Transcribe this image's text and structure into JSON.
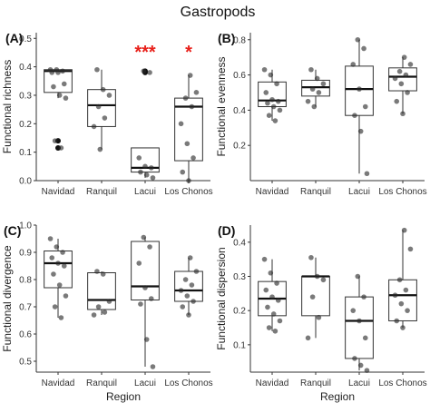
{
  "figure": {
    "title": "Gastropods"
  },
  "chart_data": [
    {
      "type": "box",
      "panel": "(A)",
      "ylabel": "Functional richness",
      "xlabel": "",
      "categories": [
        "Navidad",
        "Ranquil",
        "Lacui",
        "Los Chonos"
      ],
      "ylim": [
        0,
        0.52
      ],
      "yticks": [
        0.0,
        0.1,
        0.2,
        0.3,
        0.4,
        0.5
      ],
      "grid": false,
      "boxes": [
        {
          "q1": 0.31,
          "median": 0.385,
          "q3": 0.39,
          "whisker_low": 0.29,
          "whisker_high": 0.39,
          "outliers": [
            0.14,
            0.115
          ]
        },
        {
          "q1": 0.19,
          "median": 0.265,
          "q3": 0.32,
          "whisker_low": 0.11,
          "whisker_high": 0.39,
          "outliers": []
        },
        {
          "q1": 0.03,
          "median": 0.045,
          "q3": 0.115,
          "whisker_low": 0.01,
          "whisker_high": 0.115,
          "outliers": [
            0.385,
            0.38
          ]
        },
        {
          "q1": 0.07,
          "median": 0.26,
          "q3": 0.29,
          "whisker_low": 0.0,
          "whisker_high": 0.37,
          "outliers": []
        }
      ],
      "points": [
        [
          0.39,
          0.39,
          0.385,
          0.38,
          0.38,
          0.34,
          0.33,
          0.3,
          0.29,
          0.14,
          0.115
        ],
        [
          0.39,
          0.32,
          0.3,
          0.26,
          0.22,
          0.19,
          0.11
        ],
        [
          0.385,
          0.38,
          0.08,
          0.05,
          0.045,
          0.03,
          0.02,
          0.01
        ],
        [
          0.37,
          0.31,
          0.29,
          0.26,
          0.2,
          0.13,
          0.08,
          0.03,
          0.0
        ]
      ],
      "annotations": [
        "***",
        "*"
      ]
    },
    {
      "type": "box",
      "panel": "(B)",
      "ylabel": "Functional evenness",
      "xlabel": "",
      "categories": [
        "Navidad",
        "Ranquil",
        "Lacui",
        "Los Chonos"
      ],
      "ylim": [
        0,
        0.84
      ],
      "yticks": [
        0.2,
        0.4,
        0.6,
        0.8
      ],
      "grid": false,
      "boxes": [
        {
          "q1": 0.42,
          "median": 0.455,
          "q3": 0.56,
          "whisker_low": 0.34,
          "whisker_high": 0.63,
          "outliers": []
        },
        {
          "q1": 0.48,
          "median": 0.53,
          "q3": 0.57,
          "whisker_low": 0.42,
          "whisker_high": 0.63,
          "outliers": []
        },
        {
          "q1": 0.37,
          "median": 0.52,
          "q3": 0.65,
          "whisker_low": 0.04,
          "whisker_high": 0.8,
          "outliers": []
        },
        {
          "q1": 0.51,
          "median": 0.59,
          "q3": 0.64,
          "whisker_low": 0.38,
          "whisker_high": 0.7,
          "outliers": []
        }
      ],
      "points": [
        [
          0.63,
          0.6,
          0.55,
          0.5,
          0.46,
          0.45,
          0.44,
          0.42,
          0.4,
          0.37,
          0.34
        ],
        [
          0.63,
          0.58,
          0.55,
          0.52,
          0.5,
          0.45,
          0.42
        ],
        [
          0.8,
          0.75,
          0.66,
          0.52,
          0.42,
          0.37,
          0.28,
          0.04
        ],
        [
          0.7,
          0.66,
          0.62,
          0.6,
          0.58,
          0.55,
          0.5,
          0.45,
          0.38
        ]
      ],
      "annotations": []
    },
    {
      "type": "box",
      "panel": "(C)",
      "ylabel": "Functional divergence",
      "xlabel": "Region",
      "categories": [
        "Navidad",
        "Ranquil",
        "Lacui",
        "Los Chonos"
      ],
      "ylim": [
        0.46,
        1.0
      ],
      "yticks": [
        0.5,
        0.6,
        0.7,
        0.8,
        0.9,
        1.0
      ],
      "grid": false,
      "boxes": [
        {
          "q1": 0.77,
          "median": 0.86,
          "q3": 0.905,
          "whisker_low": 0.66,
          "whisker_high": 0.95,
          "outliers": []
        },
        {
          "q1": 0.69,
          "median": 0.725,
          "q3": 0.825,
          "whisker_low": 0.67,
          "whisker_high": 0.83,
          "outliers": []
        },
        {
          "q1": 0.725,
          "median": 0.775,
          "q3": 0.94,
          "whisker_low": 0.48,
          "whisker_high": 0.955,
          "outliers": []
        },
        {
          "q1": 0.72,
          "median": 0.76,
          "q3": 0.83,
          "whisker_low": 0.67,
          "whisker_high": 0.88,
          "outliers": []
        }
      ],
      "points": [
        [
          0.95,
          0.92,
          0.9,
          0.88,
          0.86,
          0.85,
          0.82,
          0.78,
          0.74,
          0.7,
          0.66
        ],
        [
          0.83,
          0.82,
          0.72,
          0.7,
          0.68,
          0.67
        ],
        [
          0.955,
          0.92,
          0.86,
          0.77,
          0.73,
          0.71,
          0.58,
          0.48
        ],
        [
          0.88,
          0.83,
          0.8,
          0.78,
          0.76,
          0.74,
          0.72,
          0.7,
          0.67
        ]
      ],
      "annotations": []
    },
    {
      "type": "box",
      "panel": "(D)",
      "ylabel": "Functional dispersion",
      "xlabel": "Region",
      "categories": [
        "Navidad",
        "Ranquil",
        "Lacui",
        "Los Chonos"
      ],
      "ylim": [
        0.02,
        0.45
      ],
      "yticks": [
        0.1,
        0.2,
        0.3,
        0.4
      ],
      "grid": false,
      "boxes": [
        {
          "q1": 0.185,
          "median": 0.235,
          "q3": 0.285,
          "whisker_low": 0.14,
          "whisker_high": 0.35,
          "outliers": []
        },
        {
          "q1": 0.185,
          "median": 0.3,
          "q3": 0.3,
          "whisker_low": 0.12,
          "whisker_high": 0.355,
          "outliers": []
        },
        {
          "q1": 0.06,
          "median": 0.17,
          "q3": 0.24,
          "whisker_low": 0.025,
          "whisker_high": 0.3,
          "outliers": []
        },
        {
          "q1": 0.17,
          "median": 0.245,
          "q3": 0.29,
          "whisker_low": 0.15,
          "whisker_high": 0.435,
          "outliers": []
        }
      ],
      "points": [
        [
          0.35,
          0.31,
          0.28,
          0.26,
          0.24,
          0.23,
          0.21,
          0.19,
          0.17,
          0.15,
          0.14
        ],
        [
          0.355,
          0.3,
          0.29,
          0.24,
          0.18,
          0.12
        ],
        [
          0.3,
          0.24,
          0.2,
          0.17,
          0.12,
          0.06,
          0.04,
          0.025
        ],
        [
          0.435,
          0.38,
          0.29,
          0.26,
          0.245,
          0.22,
          0.2,
          0.17,
          0.15
        ]
      ],
      "annotations": []
    }
  ]
}
